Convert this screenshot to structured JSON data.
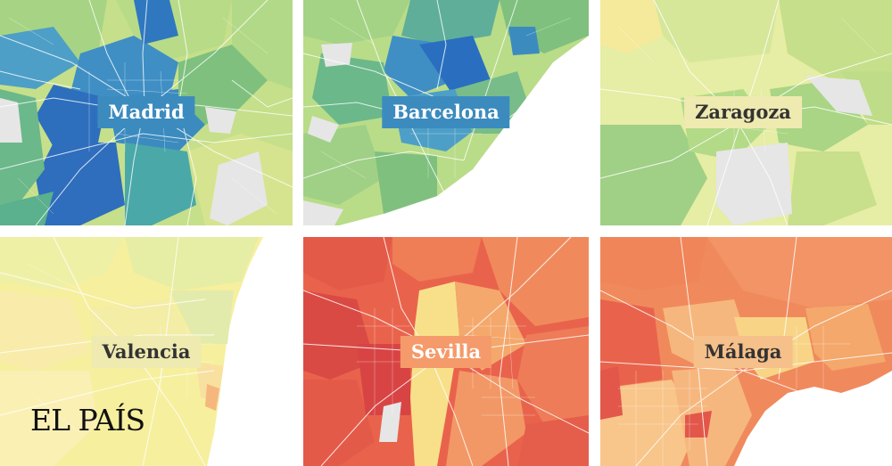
{
  "maps": [
    {
      "city": "Madrid"
    },
    {
      "city": "Barcelona"
    },
    {
      "city": "Zaragoza"
    },
    {
      "city": "Valencia"
    },
    {
      "city": "Sevilla"
    },
    {
      "city": "Málaga"
    }
  ],
  "logo": "EL PAÍS",
  "colors": {
    "sea": "#ffffff",
    "no_data": "#e6e6e6",
    "roads": "#ffffff",
    "dark_blue": "#2a6fbf",
    "blue": "#3c8bbf",
    "teal": "#4aa8a8",
    "green": "#8cc97a",
    "light_green": "#c8df8c",
    "pale_yellow": "#f1ecaa",
    "yellow": "#fbe79a",
    "light_orange": "#f6b77e",
    "orange": "#f2885c",
    "red": "#e2574a"
  }
}
